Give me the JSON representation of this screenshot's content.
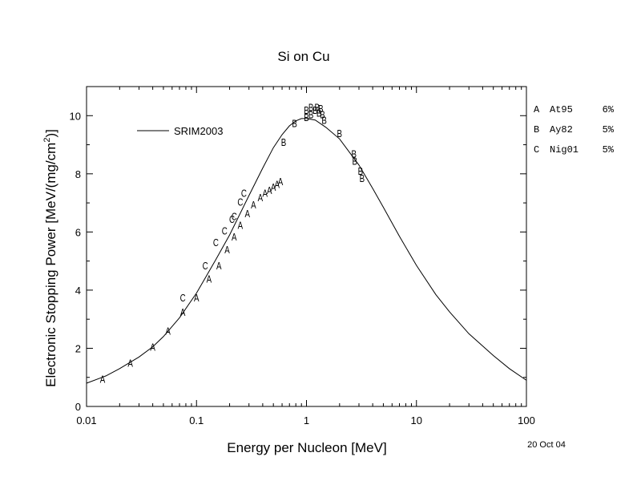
{
  "chart_data": {
    "type": "scatter",
    "title": "Si on Cu",
    "xlabel": "Energy per Nucleon [MeV]",
    "ylabel": "Electronic Stopping Power [MeV/(mg/cm",
    "ylabel_sup": "2",
    "ylabel_end": ")]",
    "xscale": "log",
    "xlim": [
      0.01,
      100
    ],
    "ylim": [
      0,
      11
    ],
    "x_ticks": [
      {
        "v": 0.01,
        "label": "0.01"
      },
      {
        "v": 0.1,
        "label": "0.1"
      },
      {
        "v": 1,
        "label": "1"
      },
      {
        "v": 10,
        "label": "10"
      },
      {
        "v": 100,
        "label": "100"
      }
    ],
    "y_ticks": [
      {
        "v": 0,
        "label": "0"
      },
      {
        "v": 2,
        "label": "2"
      },
      {
        "v": 4,
        "label": "4"
      },
      {
        "v": 6,
        "label": "6"
      },
      {
        "v": 8,
        "label": "8"
      },
      {
        "v": 10,
        "label": "10"
      }
    ],
    "legend_line_label": "SRIM2003",
    "legend_markers": [
      {
        "marker": "A",
        "name": "At95",
        "pct": "6%"
      },
      {
        "marker": "B",
        "name": "Ay82",
        "pct": "5%"
      },
      {
        "marker": "C",
        "name": "Nig01",
        "pct": "5%"
      }
    ],
    "date_label": "20 Oct 04",
    "srim_curve": {
      "x": [
        0.01,
        0.015,
        0.02,
        0.03,
        0.04,
        0.05,
        0.07,
        0.1,
        0.15,
        0.2,
        0.3,
        0.4,
        0.5,
        0.6,
        0.7,
        0.8,
        0.9,
        1.0,
        1.2,
        1.5,
        2,
        3,
        4,
        5,
        7,
        10,
        15,
        20,
        30,
        50,
        70,
        100
      ],
      "y": [
        0.8,
        1.05,
        1.3,
        1.7,
        2.05,
        2.4,
        3.05,
        3.9,
        5.05,
        5.9,
        7.25,
        8.2,
        8.9,
        9.35,
        9.65,
        9.82,
        9.9,
        9.9,
        9.85,
        9.6,
        9.2,
        8.3,
        7.5,
        6.85,
        5.85,
        4.85,
        3.85,
        3.25,
        2.5,
        1.75,
        1.3,
        0.9
      ]
    },
    "series": [
      {
        "marker": "A",
        "x": [
          0.014,
          0.025,
          0.04,
          0.055,
          0.075,
          0.1,
          0.13,
          0.16,
          0.19,
          0.22,
          0.25,
          0.29,
          0.33,
          0.38,
          0.42,
          0.46,
          0.5,
          0.54,
          0.58
        ],
        "y": [
          0.95,
          1.5,
          2.05,
          2.6,
          3.25,
          3.75,
          4.4,
          4.85,
          5.4,
          5.85,
          6.25,
          6.65,
          6.95,
          7.2,
          7.35,
          7.45,
          7.55,
          7.65,
          7.75
        ]
      },
      {
        "marker": "B",
        "x": [
          0.62,
          0.78,
          1.0,
          1.0,
          1.1,
          1.1,
          1.2,
          1.25,
          1.3,
          1.35,
          1.4,
          1.45,
          2.0,
          2.7,
          2.75,
          3.1,
          3.2
        ],
        "y": [
          9.1,
          9.75,
          10.2,
          9.95,
          10.3,
          10.05,
          10.2,
          10.3,
          10.1,
          10.25,
          10.05,
          9.85,
          9.4,
          8.7,
          8.45,
          8.1,
          7.85
        ]
      },
      {
        "marker": "C",
        "x": [
          0.075,
          0.12,
          0.15,
          0.18,
          0.21,
          0.22,
          0.25,
          0.27
        ],
        "y": [
          3.75,
          4.85,
          5.65,
          6.05,
          6.45,
          6.55,
          7.05,
          7.35
        ]
      }
    ]
  }
}
